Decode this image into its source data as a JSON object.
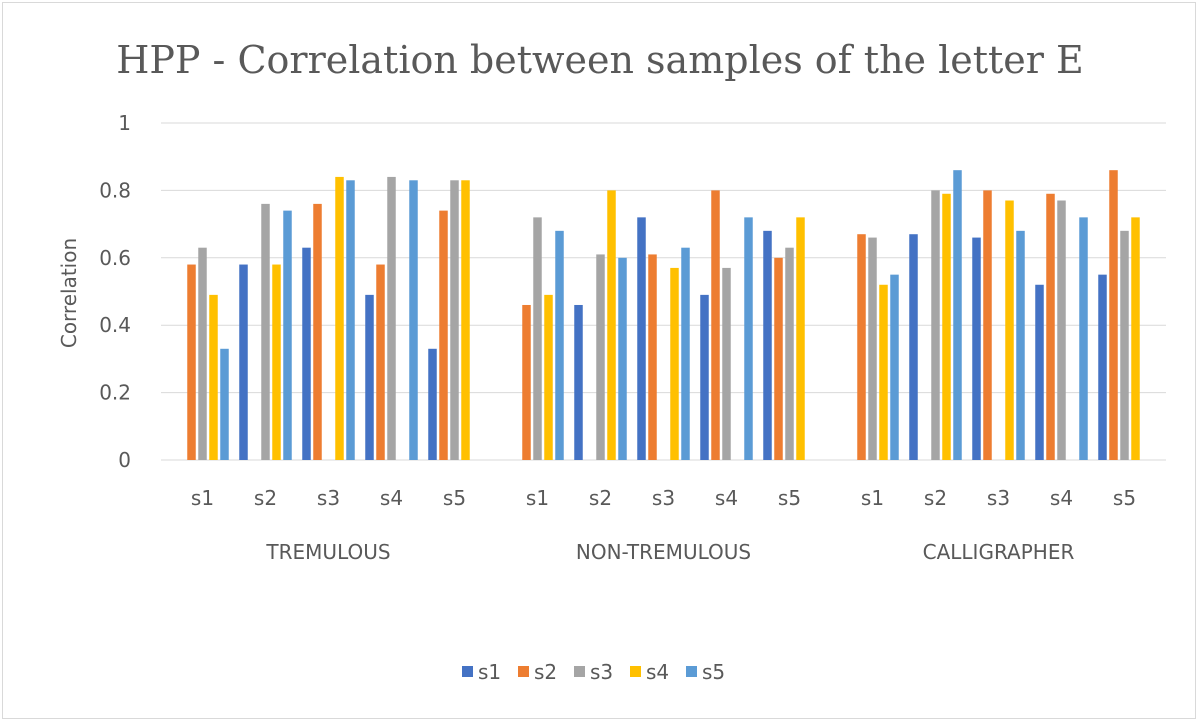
{
  "chart_data": {
    "type": "bar",
    "title": "HPP - Correlation between samples of the letter E",
    "ylabel": "Correlation",
    "xlabel": "",
    "ylim": [
      0,
      1
    ],
    "yticks": [
      0,
      0.2,
      0.4,
      0.6,
      0.8,
      1
    ],
    "ytick_labels": [
      "0",
      "0.2",
      "0.4",
      "0.6",
      "0.8",
      "1"
    ],
    "grid": true,
    "legend_position": "bottom",
    "groups": [
      {
        "label": "TREMULOUS",
        "categories": [
          "s1",
          "s2",
          "s3",
          "s4",
          "s5"
        ],
        "series": [
          {
            "name": "s1",
            "values": [
              0,
              0.58,
              0.63,
              0.49,
              0.33
            ]
          },
          {
            "name": "s2",
            "values": [
              0.58,
              0,
              0.76,
              0.58,
              0.74
            ]
          },
          {
            "name": "s3",
            "values": [
              0.63,
              0.76,
              0,
              0.84,
              0.83
            ]
          },
          {
            "name": "s4",
            "values": [
              0.49,
              0.58,
              0.84,
              0,
              0.83
            ]
          },
          {
            "name": "s5",
            "values": [
              0.33,
              0.74,
              0.83,
              0.83,
              0
            ]
          }
        ]
      },
      {
        "label": "NON-TREMULOUS",
        "categories": [
          "s1",
          "s2",
          "s3",
          "s4",
          "s5"
        ],
        "series": [
          {
            "name": "s1",
            "values": [
              0,
              0.46,
              0.72,
              0.49,
              0.68
            ]
          },
          {
            "name": "s2",
            "values": [
              0.46,
              0,
              0.61,
              0.8,
              0.6
            ]
          },
          {
            "name": "s3",
            "values": [
              0.72,
              0.61,
              0,
              0.57,
              0.63
            ]
          },
          {
            "name": "s4",
            "values": [
              0.49,
              0.8,
              0.57,
              0,
              0.72
            ]
          },
          {
            "name": "s5",
            "values": [
              0.68,
              0.6,
              0.63,
              0.72,
              0
            ]
          }
        ]
      },
      {
        "label": "CALLIGRAPHER",
        "categories": [
          "s1",
          "s2",
          "s3",
          "s4",
          "s5"
        ],
        "series": [
          {
            "name": "s1",
            "values": [
              0,
              0.67,
              0.66,
              0.52,
              0.55
            ]
          },
          {
            "name": "s2",
            "values": [
              0.67,
              0,
              0.8,
              0.79,
              0.86
            ]
          },
          {
            "name": "s3",
            "values": [
              0.66,
              0.8,
              0,
              0.77,
              0.68
            ]
          },
          {
            "name": "s4",
            "values": [
              0.52,
              0.79,
              0.77,
              0,
              0.72
            ]
          },
          {
            "name": "s5",
            "values": [
              0.55,
              0.86,
              0.68,
              0.72,
              0
            ]
          }
        ]
      }
    ],
    "legend": [
      "s1",
      "s2",
      "s3",
      "s4",
      "s5"
    ],
    "colors": [
      "#4472c4",
      "#ed7d31",
      "#a5a5a5",
      "#ffc000",
      "#5b9bd5"
    ]
  }
}
